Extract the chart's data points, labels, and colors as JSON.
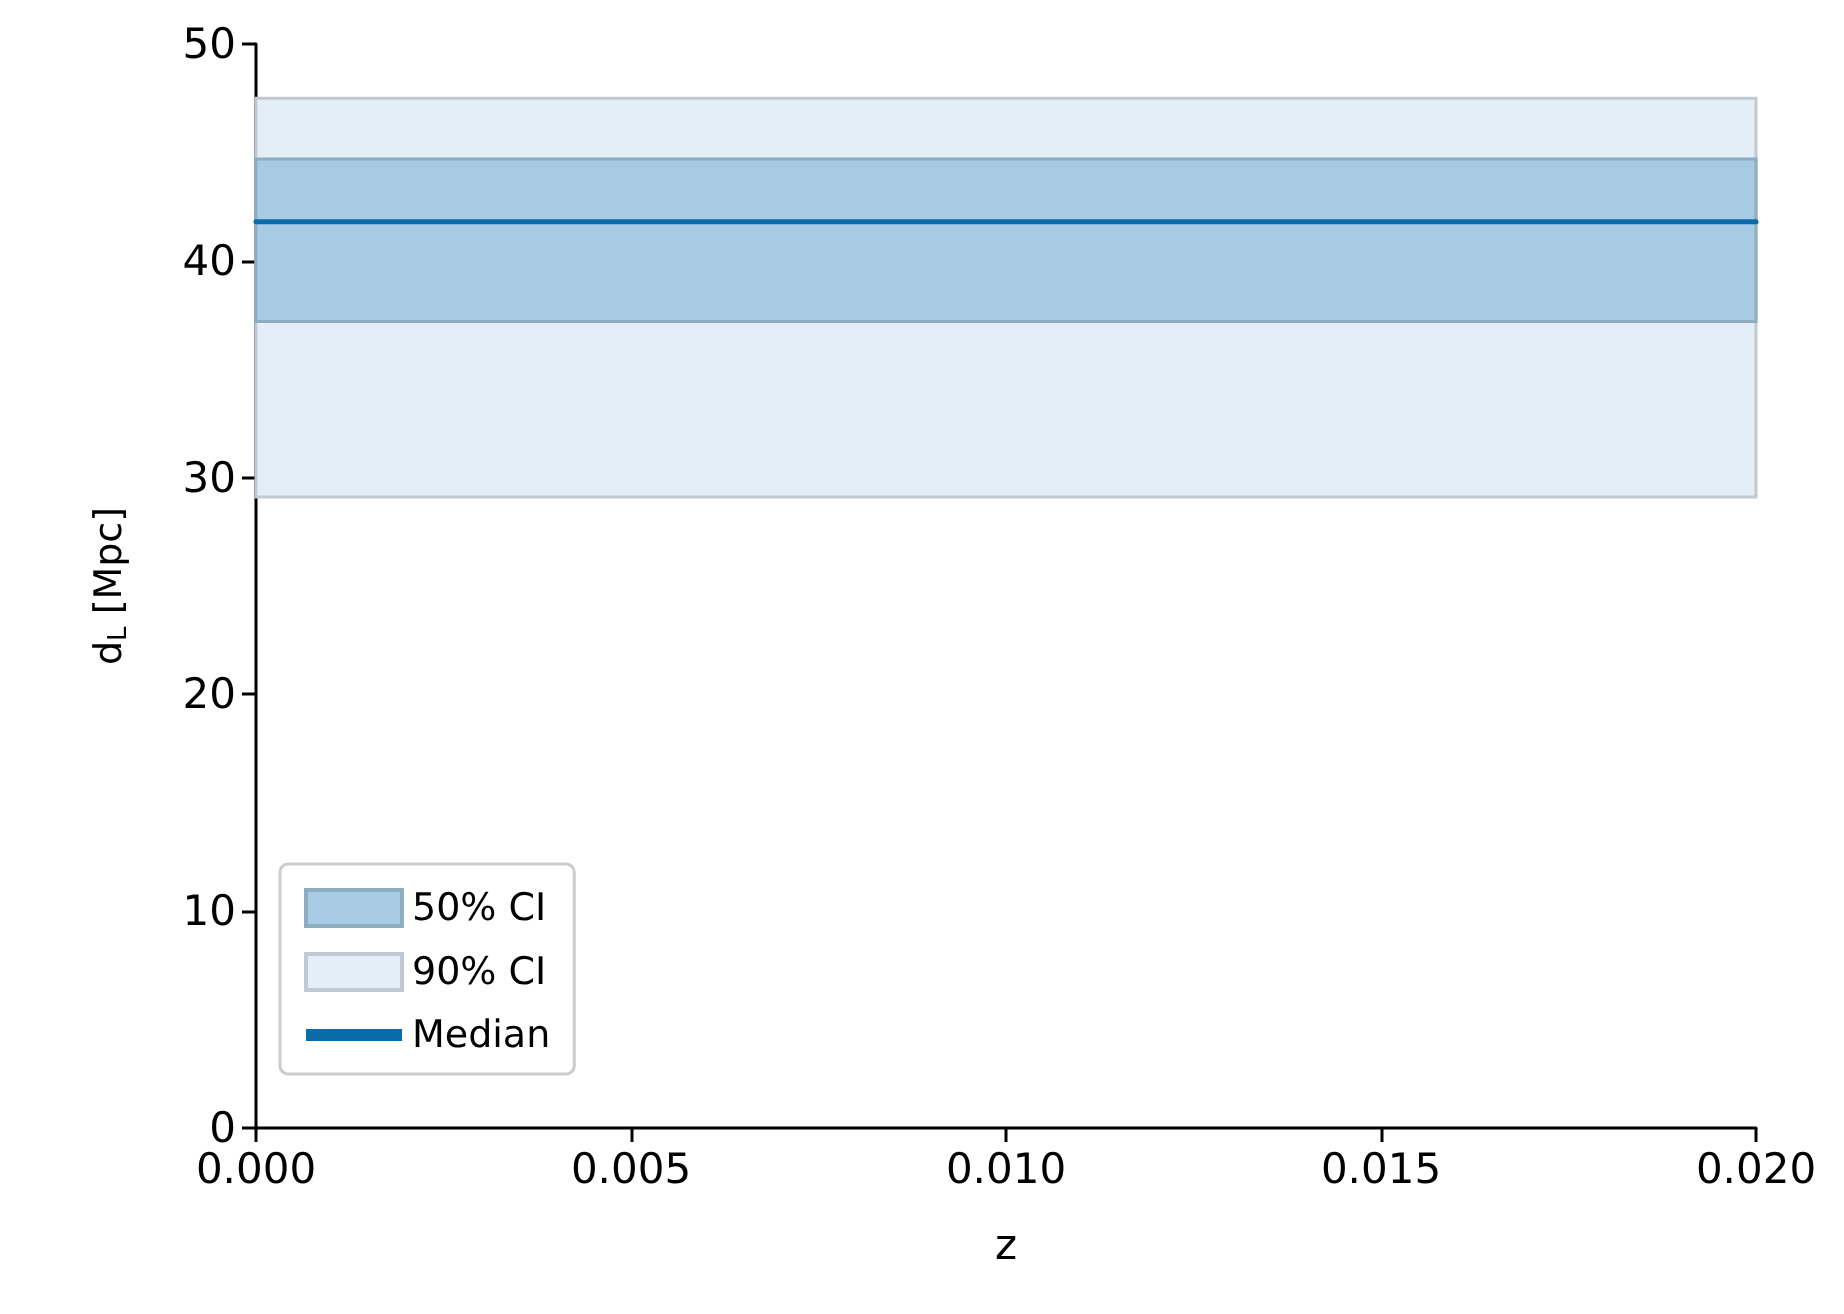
{
  "chart_data": {
    "type": "line",
    "xlabel": "z",
    "ylabel": "d$_{L}$ [Mpc]",
    "x": [
      0,
      0.02
    ],
    "series": [
      {
        "name": "Median",
        "color": "#0b6aa8",
        "values": [
          41.8,
          41.8
        ]
      }
    ],
    "bands": [
      {
        "axis": "y",
        "from": 37.2,
        "to": 44.7,
        "label": "50% CI",
        "color": "#a6cbe3"
      },
      {
        "axis": "y",
        "from": 29.1,
        "to": 47.5,
        "label": "90% CI",
        "color": "#e3eef7"
      }
    ],
    "xlim": [
      0,
      0.02
    ],
    "xticks": [
      {
        "value": 0,
        "label": "0.000"
      },
      {
        "value": 0.005,
        "label": "0.005"
      },
      {
        "value": 0.01,
        "label": "0.010"
      },
      {
        "value": 0.015,
        "label": "0.015"
      },
      {
        "value": 0.02,
        "label": "0.020"
      }
    ],
    "ylim": [
      0,
      50
    ],
    "yticks": [
      0,
      10,
      20,
      30,
      40,
      50
    ],
    "grid": false,
    "legend": "bottom left",
    "marker": "none",
    "line_style": "solid"
  }
}
